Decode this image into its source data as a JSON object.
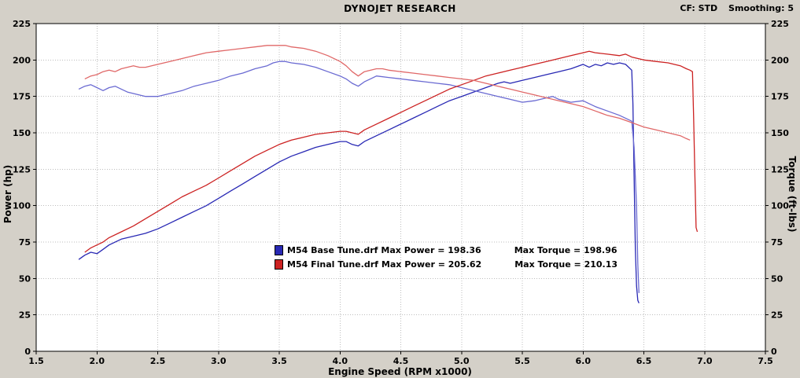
{
  "header": {
    "title": "DYNOJET RESEARCH",
    "cf": "CF: STD",
    "smoothing": "Smoothing: 5"
  },
  "chart_data": {
    "type": "line",
    "title": "DYNOJET RESEARCH",
    "xlabel": "Engine Speed (RPM x1000)",
    "ylabel": "Power (hp)",
    "y2label": "Torque (ft-lbs)",
    "xlim": [
      1.5,
      7.5
    ],
    "ylim": [
      0,
      225
    ],
    "y2lim": [
      0,
      225
    ],
    "grid": true,
    "xticks": [
      "1.5",
      "2.0",
      "2.5",
      "3.0",
      "3.5",
      "4.0",
      "4.5",
      "5.0",
      "5.5",
      "6.0",
      "6.5",
      "7.0",
      "7.5"
    ],
    "yticks": [
      "0",
      "25",
      "50",
      "75",
      "100",
      "125",
      "150",
      "175",
      "200",
      "225"
    ],
    "legend": [
      {
        "swatch_color": "#2828b4",
        "file": "M54 Base Tune.drf",
        "max_power_text": "Max Power = 198.36",
        "max_torque_text": "Max Torque = 198.96",
        "max_power": 198.36,
        "max_torque": 198.96
      },
      {
        "swatch_color": "#cc2222",
        "file": "M54 Final Tune.drf",
        "max_power_text": "Max Power = 205.62",
        "max_torque_text": "Max Torque = 210.13",
        "max_power": 205.62,
        "max_torque": 210.13
      }
    ],
    "series": [
      {
        "name": "base-tune-power",
        "axis": "left",
        "unit": "hp",
        "color": "#2828b4",
        "points": [
          [
            1.85,
            63
          ],
          [
            1.9,
            66
          ],
          [
            1.95,
            68
          ],
          [
            2.0,
            67
          ],
          [
            2.05,
            70
          ],
          [
            2.1,
            73
          ],
          [
            2.2,
            77
          ],
          [
            2.3,
            79
          ],
          [
            2.4,
            81
          ],
          [
            2.5,
            84
          ],
          [
            2.6,
            88
          ],
          [
            2.7,
            92
          ],
          [
            2.8,
            96
          ],
          [
            2.9,
            100
          ],
          [
            3.0,
            105
          ],
          [
            3.1,
            110
          ],
          [
            3.2,
            115
          ],
          [
            3.3,
            120
          ],
          [
            3.4,
            125
          ],
          [
            3.5,
            130
          ],
          [
            3.6,
            134
          ],
          [
            3.7,
            137
          ],
          [
            3.8,
            140
          ],
          [
            3.9,
            142
          ],
          [
            4.0,
            144
          ],
          [
            4.05,
            144
          ],
          [
            4.1,
            142
          ],
          [
            4.15,
            141
          ],
          [
            4.2,
            144
          ],
          [
            4.3,
            148
          ],
          [
            4.4,
            152
          ],
          [
            4.5,
            156
          ],
          [
            4.6,
            160
          ],
          [
            4.7,
            164
          ],
          [
            4.8,
            168
          ],
          [
            4.9,
            172
          ],
          [
            5.0,
            175
          ],
          [
            5.1,
            178
          ],
          [
            5.2,
            181
          ],
          [
            5.3,
            184
          ],
          [
            5.35,
            185
          ],
          [
            5.4,
            184
          ],
          [
            5.5,
            186
          ],
          [
            5.6,
            188
          ],
          [
            5.7,
            190
          ],
          [
            5.8,
            192
          ],
          [
            5.9,
            194
          ],
          [
            6.0,
            197
          ],
          [
            6.05,
            195
          ],
          [
            6.1,
            197
          ],
          [
            6.15,
            196
          ],
          [
            6.2,
            198
          ],
          [
            6.25,
            197
          ],
          [
            6.3,
            198
          ],
          [
            6.35,
            197
          ],
          [
            6.4,
            193
          ],
          [
            6.41,
            170
          ],
          [
            6.42,
            120
          ],
          [
            6.43,
            70
          ],
          [
            6.44,
            45
          ],
          [
            6.45,
            35
          ],
          [
            6.46,
            33
          ]
        ]
      },
      {
        "name": "base-tune-torque",
        "axis": "right",
        "unit": "ft-lbs",
        "color": "#6a6ad2",
        "points": [
          [
            1.85,
            180
          ],
          [
            1.9,
            182
          ],
          [
            1.95,
            183
          ],
          [
            2.0,
            181
          ],
          [
            2.05,
            179
          ],
          [
            2.1,
            181
          ],
          [
            2.15,
            182
          ],
          [
            2.2,
            180
          ],
          [
            2.25,
            178
          ],
          [
            2.3,
            177
          ],
          [
            2.4,
            175
          ],
          [
            2.5,
            175
          ],
          [
            2.6,
            177
          ],
          [
            2.7,
            179
          ],
          [
            2.8,
            182
          ],
          [
            2.9,
            184
          ],
          [
            3.0,
            186
          ],
          [
            3.1,
            189
          ],
          [
            3.2,
            191
          ],
          [
            3.3,
            194
          ],
          [
            3.4,
            196
          ],
          [
            3.45,
            198
          ],
          [
            3.5,
            199
          ],
          [
            3.55,
            199
          ],
          [
            3.6,
            198
          ],
          [
            3.7,
            197
          ],
          [
            3.8,
            195
          ],
          [
            3.9,
            192
          ],
          [
            4.0,
            189
          ],
          [
            4.05,
            187
          ],
          [
            4.1,
            184
          ],
          [
            4.15,
            182
          ],
          [
            4.2,
            185
          ],
          [
            4.25,
            187
          ],
          [
            4.3,
            189
          ],
          [
            4.4,
            188
          ],
          [
            4.5,
            187
          ],
          [
            4.6,
            186
          ],
          [
            4.7,
            185
          ],
          [
            4.8,
            184
          ],
          [
            4.9,
            183
          ],
          [
            5.0,
            181
          ],
          [
            5.1,
            179
          ],
          [
            5.2,
            177
          ],
          [
            5.3,
            175
          ],
          [
            5.4,
            173
          ],
          [
            5.5,
            171
          ],
          [
            5.6,
            172
          ],
          [
            5.7,
            174
          ],
          [
            5.75,
            175
          ],
          [
            5.8,
            173
          ],
          [
            5.9,
            171
          ],
          [
            6.0,
            172
          ],
          [
            6.05,
            170
          ],
          [
            6.1,
            168
          ],
          [
            6.2,
            165
          ],
          [
            6.3,
            162
          ],
          [
            6.4,
            158
          ],
          [
            6.42,
            140
          ],
          [
            6.44,
            100
          ],
          [
            6.45,
            60
          ],
          [
            6.46,
            40
          ]
        ]
      },
      {
        "name": "final-tune-power",
        "axis": "left",
        "unit": "hp",
        "color": "#cc2222",
        "points": [
          [
            1.9,
            68
          ],
          [
            1.95,
            71
          ],
          [
            2.0,
            73
          ],
          [
            2.05,
            75
          ],
          [
            2.1,
            78
          ],
          [
            2.2,
            82
          ],
          [
            2.3,
            86
          ],
          [
            2.4,
            91
          ],
          [
            2.5,
            96
          ],
          [
            2.6,
            101
          ],
          [
            2.7,
            106
          ],
          [
            2.8,
            110
          ],
          [
            2.9,
            114
          ],
          [
            3.0,
            119
          ],
          [
            3.1,
            124
          ],
          [
            3.2,
            129
          ],
          [
            3.3,
            134
          ],
          [
            3.4,
            138
          ],
          [
            3.5,
            142
          ],
          [
            3.6,
            145
          ],
          [
            3.7,
            147
          ],
          [
            3.8,
            149
          ],
          [
            3.9,
            150
          ],
          [
            4.0,
            151
          ],
          [
            4.05,
            151
          ],
          [
            4.1,
            150
          ],
          [
            4.15,
            149
          ],
          [
            4.2,
            152
          ],
          [
            4.3,
            156
          ],
          [
            4.4,
            160
          ],
          [
            4.5,
            164
          ],
          [
            4.6,
            168
          ],
          [
            4.7,
            172
          ],
          [
            4.8,
            176
          ],
          [
            4.9,
            180
          ],
          [
            5.0,
            183
          ],
          [
            5.1,
            186
          ],
          [
            5.2,
            189
          ],
          [
            5.3,
            191
          ],
          [
            5.4,
            193
          ],
          [
            5.5,
            195
          ],
          [
            5.6,
            197
          ],
          [
            5.7,
            199
          ],
          [
            5.8,
            201
          ],
          [
            5.9,
            203
          ],
          [
            6.0,
            205
          ],
          [
            6.05,
            206
          ],
          [
            6.1,
            205
          ],
          [
            6.2,
            204
          ],
          [
            6.3,
            203
          ],
          [
            6.35,
            204
          ],
          [
            6.4,
            202
          ],
          [
            6.5,
            200
          ],
          [
            6.6,
            199
          ],
          [
            6.7,
            198
          ],
          [
            6.75,
            197
          ],
          [
            6.8,
            196
          ],
          [
            6.85,
            194
          ],
          [
            6.88,
            193
          ],
          [
            6.9,
            192
          ],
          [
            6.91,
            160
          ],
          [
            6.92,
            120
          ],
          [
            6.93,
            85
          ],
          [
            6.94,
            82
          ]
        ]
      },
      {
        "name": "final-tune-torque",
        "axis": "right",
        "unit": "ft-lbs",
        "color": "#e06868",
        "points": [
          [
            1.9,
            187
          ],
          [
            1.95,
            189
          ],
          [
            2.0,
            190
          ],
          [
            2.05,
            192
          ],
          [
            2.1,
            193
          ],
          [
            2.15,
            192
          ],
          [
            2.2,
            194
          ],
          [
            2.25,
            195
          ],
          [
            2.3,
            196
          ],
          [
            2.35,
            195
          ],
          [
            2.4,
            195
          ],
          [
            2.5,
            197
          ],
          [
            2.6,
            199
          ],
          [
            2.7,
            201
          ],
          [
            2.8,
            203
          ],
          [
            2.9,
            205
          ],
          [
            3.0,
            206
          ],
          [
            3.1,
            207
          ],
          [
            3.2,
            208
          ],
          [
            3.3,
            209
          ],
          [
            3.4,
            210
          ],
          [
            3.5,
            210
          ],
          [
            3.55,
            210
          ],
          [
            3.6,
            209
          ],
          [
            3.7,
            208
          ],
          [
            3.8,
            206
          ],
          [
            3.9,
            203
          ],
          [
            4.0,
            199
          ],
          [
            4.05,
            196
          ],
          [
            4.1,
            192
          ],
          [
            4.15,
            189
          ],
          [
            4.2,
            192
          ],
          [
            4.3,
            194
          ],
          [
            4.35,
            194
          ],
          [
            4.4,
            193
          ],
          [
            4.5,
            192
          ],
          [
            4.6,
            191
          ],
          [
            4.7,
            190
          ],
          [
            4.8,
            189
          ],
          [
            4.9,
            188
          ],
          [
            5.0,
            187
          ],
          [
            5.1,
            186
          ],
          [
            5.2,
            184
          ],
          [
            5.3,
            182
          ],
          [
            5.4,
            180
          ],
          [
            5.5,
            178
          ],
          [
            5.6,
            176
          ],
          [
            5.7,
            174
          ],
          [
            5.8,
            172
          ],
          [
            5.9,
            170
          ],
          [
            6.0,
            168
          ],
          [
            6.1,
            165
          ],
          [
            6.2,
            162
          ],
          [
            6.3,
            160
          ],
          [
            6.4,
            157
          ],
          [
            6.5,
            154
          ],
          [
            6.6,
            152
          ],
          [
            6.7,
            150
          ],
          [
            6.8,
            148
          ],
          [
            6.85,
            146
          ],
          [
            6.88,
            145
          ]
        ]
      }
    ]
  }
}
